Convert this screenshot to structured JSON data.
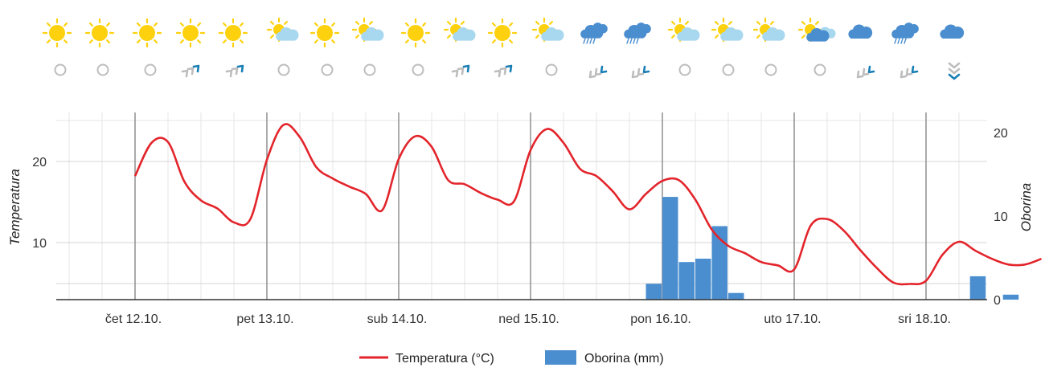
{
  "chart_data": {
    "type": "line",
    "x_unit": "hours since start of čet 12.10.",
    "day_labels": [
      "čet 12.10.",
      "pet 13.10.",
      "sub 14.10.",
      "ned 15.10.",
      "pon 16.10.",
      "uto 17.10.",
      "sri 18.10."
    ],
    "left_axis": {
      "title": "Temperatura",
      "ticks": [
        10,
        20
      ],
      "range": [
        3,
        25.6
      ]
    },
    "right_axis": {
      "title": "Oborina",
      "ticks": [
        0,
        10,
        20
      ],
      "range": [
        0,
        21
      ]
    },
    "grid": true,
    "legend": {
      "position": "bottom-center"
    },
    "colors": {
      "temperature": "#e3242b",
      "precipitation": "#4a8ecf",
      "cloud_dark": "#4a8ecf",
      "cloud_light": "#a8d8f0",
      "sun": "#fdd10e",
      "arrow_blue": "#1a7fb5",
      "arrow_grey": "#bdbdbd"
    },
    "series": [
      {
        "name": "Temperatura (°C)",
        "kind": "line",
        "axis": "left",
        "x": [
          0,
          3,
          6,
          9,
          12,
          15,
          18,
          21,
          24,
          27,
          30,
          33,
          36,
          39,
          42,
          45,
          48,
          51,
          54,
          57,
          60,
          63,
          66,
          69,
          72,
          75,
          78,
          81,
          84,
          87,
          90,
          93,
          96,
          99,
          102,
          105,
          108,
          111,
          114,
          117,
          120,
          123,
          126,
          129,
          132,
          135,
          138,
          141,
          144,
          147,
          150,
          153,
          156,
          159,
          162,
          165
        ],
        "y": [
          18.2,
          22.3,
          22.4,
          17.5,
          15.2,
          14.2,
          12.5,
          12.9,
          20.2,
          24.5,
          23.0,
          19.3,
          17.9,
          16.9,
          16.0,
          14.0,
          20.3,
          23.1,
          21.8,
          17.7,
          17.2,
          16.1,
          15.3,
          15.1,
          21.4,
          24.0,
          22.3,
          19.1,
          18.2,
          16.3,
          14.1,
          16.0,
          17.6,
          17.7,
          15.3,
          11.6,
          9.6,
          8.7,
          7.6,
          7.2,
          6.7,
          12.1,
          12.9,
          11.5,
          9.1,
          6.9,
          5.1,
          4.9,
          5.3,
          8.5,
          10.1,
          9.0,
          8.0,
          7.3,
          7.3,
          8.0
        ]
      },
      {
        "name": "Oborina (mm)",
        "kind": "bar",
        "axis": "right",
        "x": [
          94.5,
          97.5,
          100.5,
          103.5,
          106.5,
          109.5,
          153.5,
          159.5
        ],
        "width_hours": 3,
        "values": [
          1.9,
          12.3,
          4.5,
          4.9,
          8.8,
          0.8,
          2.8,
          0.6
        ]
      }
    ]
  },
  "weather_icons": [
    "sun-icon",
    "sun-icon",
    "sun-icon",
    "sun-icon",
    "sun-icon",
    "partly-cloudy-icon",
    "sun-icon",
    "partly-cloudy-icon",
    "sun-icon",
    "partly-cloudy-icon",
    "sun-icon",
    "partly-cloudy-icon",
    "rain-cloud-icon",
    "rain-cloud-icon",
    "partly-cloudy-icon",
    "partly-cloudy-icon",
    "partly-cloudy-icon",
    "partly-cloudy-dark-icon",
    "cloud-icon",
    "rain-cloud-icon",
    "cloud-icon"
  ],
  "wind_icons": [
    "calm-icon",
    "calm-icon",
    "calm-icon",
    "wind-arrow-ne-icon",
    "wind-arrow-ne-icon",
    "calm-icon",
    "calm-icon",
    "calm-icon",
    "calm-icon",
    "wind-arrow-ne-icon",
    "wind-arrow-ne-icon",
    "calm-icon",
    "wind-arrow-sw-icon",
    "wind-arrow-sw-icon",
    "calm-icon",
    "calm-icon",
    "calm-icon",
    "calm-icon",
    "wind-arrow-sw-icon",
    "wind-arrow-sw-icon",
    "wind-arrow-down-icon"
  ]
}
